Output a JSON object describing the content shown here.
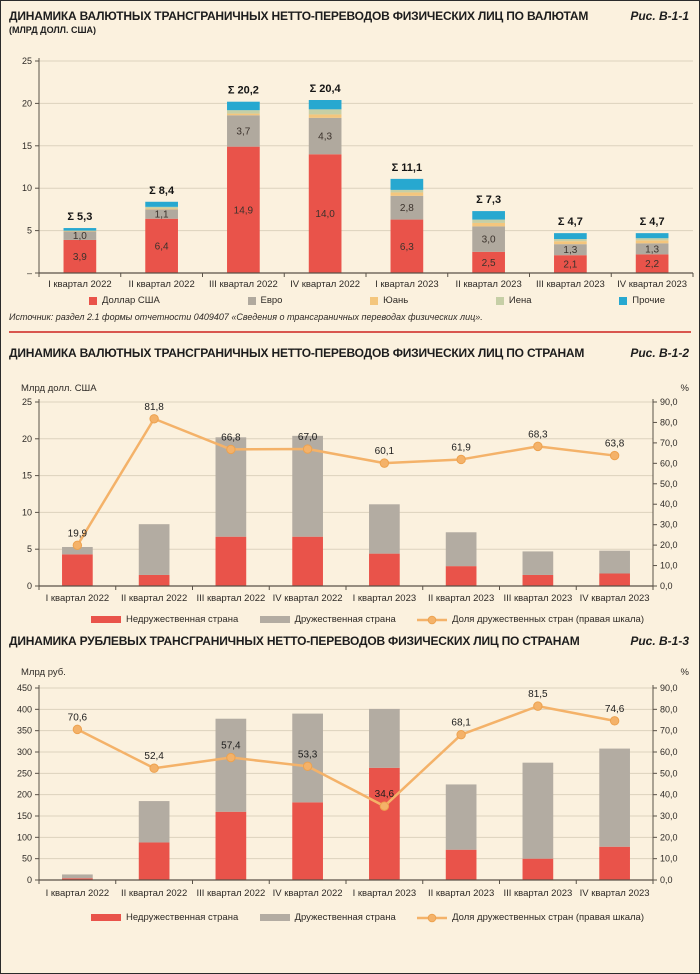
{
  "page": {
    "background": "#fbf1de",
    "divider_color": "#d9564e"
  },
  "chart_data": [
    {
      "type": "stacked_bar",
      "title": "ДИНАМИКА ВАЛЮТНЫХ ТРАНСГРАНИЧНЫХ НЕТТО-ПЕРЕВОДОВ ФИЗИЧЕСКИХ ЛИЦ ПО ВАЛЮТАМ",
      "subtitle": "(МЛРД ДОЛЛ. США)",
      "fig": "Рис. В-1-1",
      "categories": [
        "I квартал 2022",
        "II квартал 2022",
        "III квартал 2022",
        "IV квартал 2022",
        "I квартал 2023",
        "II квартал 2023",
        "III квартал 2023",
        "IV квартал 2023"
      ],
      "left_axis": {
        "min": 0,
        "max": 25,
        "tick_values": [
          0,
          5,
          10,
          15,
          20,
          25
        ],
        "tick_labels": [
          "–",
          "5",
          "10",
          "15",
          "20",
          "25"
        ]
      },
      "series": [
        {
          "name": "Доллар США",
          "color": "#e9534a",
          "values": [
            3.9,
            6.4,
            14.9,
            14.0,
            6.3,
            2.5,
            2.1,
            2.2
          ],
          "labels": [
            "3,9",
            "6,4",
            "14,9",
            "14,0",
            "6,3",
            "2,5",
            "2,1",
            "2,2"
          ]
        },
        {
          "name": "Евро",
          "color": "#b0a99e",
          "values": [
            1.0,
            1.1,
            3.7,
            4.3,
            2.8,
            3.0,
            1.3,
            1.3
          ],
          "labels": [
            "1,0",
            "1,1",
            "3,7",
            "4,3",
            "2,8",
            "3,0",
            "1,3",
            "1,3"
          ]
        },
        {
          "name": "Юань",
          "color": "#f4c67d",
          "values": [
            0.05,
            0.1,
            0.2,
            0.4,
            0.4,
            0.4,
            0.35,
            0.35
          ]
        },
        {
          "name": "Иена",
          "color": "#c6cfa6",
          "values": [
            0.05,
            0.2,
            0.4,
            0.6,
            0.3,
            0.4,
            0.25,
            0.25
          ]
        },
        {
          "name": "Прочие",
          "color": "#27a8d0",
          "values": [
            0.3,
            0.6,
            1.0,
            1.1,
            1.3,
            1.0,
            0.7,
            0.6
          ]
        }
      ],
      "sum_labels": [
        "Σ 5,3",
        "Σ 8,4",
        "Σ 20,2",
        "Σ 20,4",
        "Σ 11,1",
        "Σ 7,3",
        "Σ 4,7",
        "Σ 4,7"
      ],
      "source": "Источник: раздел 2.1 формы отчетности 0409407 «Сведения о трансграничных переводах физических лиц»."
    },
    {
      "type": "stacked_bar_line",
      "title": "ДИНАМИКА ВАЛЮТНЫХ ТРАНСГРАНИЧНЫХ НЕТТО-ПЕРЕВОДОВ ФИЗИЧЕСКИХ ЛИЦ ПО СТРАНАМ",
      "fig": "Рис. В-1-2",
      "left_axis_label": "Млрд долл. США",
      "right_axis_label": "%",
      "categories": [
        "I квартал 2022",
        "II квартал 2022",
        "III квартал 2022",
        "IV квартал 2022",
        "I квартал 2023",
        "II квартал 2023",
        "III квартал 2023",
        "IV квартал 2023"
      ],
      "left_axis": {
        "min": 0,
        "max": 25,
        "tick_values": [
          0,
          5,
          10,
          15,
          20,
          25
        ],
        "tick_labels": [
          "0",
          "5",
          "10",
          "15",
          "20",
          "25"
        ]
      },
      "right_axis": {
        "min": 0,
        "max": 90,
        "tick_values": [
          0,
          10,
          20,
          30,
          40,
          50,
          60,
          70,
          80,
          90
        ],
        "tick_labels": [
          "0,0",
          "10,0",
          "20,0",
          "30,0",
          "40,0",
          "50,0",
          "60,0",
          "70,0",
          "80,0",
          "90,0"
        ]
      },
      "series": [
        {
          "name": "Недружественная страна",
          "color": "#e9534a",
          "values": [
            4.3,
            1.5,
            6.7,
            6.7,
            4.4,
            2.7,
            1.5,
            1.7
          ]
        },
        {
          "name": "Дружественная страна",
          "color": "#b3aca2",
          "values": [
            1.0,
            6.9,
            13.5,
            13.7,
            6.7,
            4.6,
            3.2,
            3.1
          ]
        }
      ],
      "line": {
        "name": "Доля дружественных стран (правая шкала)",
        "color": "#f4b269",
        "values": [
          19.9,
          81.8,
          66.8,
          67.0,
          60.1,
          61.9,
          68.3,
          63.8
        ],
        "labels": [
          "19,9",
          "81,8",
          "66,8",
          "67,0",
          "60,1",
          "61,9",
          "68,3",
          "63,8"
        ]
      }
    },
    {
      "type": "stacked_bar_line",
      "title": "ДИНАМИКА РУБЛЕВЫХ ТРАНСГРАНИЧНЫХ НЕТТО-ПЕРЕВОДОВ ФИЗИЧЕСКИХ ЛИЦ ПО СТРАНАМ",
      "fig": "Рис. В-1-3",
      "left_axis_label": "Млрд руб.",
      "right_axis_label": "%",
      "categories": [
        "I квартал 2022",
        "II квартал 2022",
        "III квартал 2022",
        "IV квартал 2022",
        "I квартал 2023",
        "II квартал 2023",
        "III квартал 2023",
        "IV квартал 2023"
      ],
      "left_axis": {
        "min": 0,
        "max": 450,
        "tick_values": [
          0,
          50,
          100,
          150,
          200,
          250,
          300,
          350,
          400,
          450
        ],
        "tick_labels": [
          "0",
          "50",
          "100",
          "150",
          "200",
          "250",
          "300",
          "350",
          "400",
          "450"
        ]
      },
      "right_axis": {
        "min": 0,
        "max": 90,
        "tick_values": [
          0,
          10,
          20,
          30,
          40,
          50,
          60,
          70,
          80,
          90
        ],
        "tick_labels": [
          "0,0",
          "10,0",
          "20,0",
          "30,0",
          "40,0",
          "50,0",
          "60,0",
          "70,0",
          "80,0",
          "90,0"
        ]
      },
      "series": [
        {
          "name": "Недружественная страна",
          "color": "#e9534a",
          "values": [
            4,
            88,
            160,
            182,
            263,
            71,
            50,
            78
          ]
        },
        {
          "name": "Дружественная страна",
          "color": "#b3aca2",
          "values": [
            9,
            97,
            218,
            208,
            138,
            153,
            225,
            230
          ]
        }
      ],
      "line": {
        "name": "Доля дружественных стран (правая шкала)",
        "color": "#f4b269",
        "values": [
          70.6,
          52.4,
          57.4,
          53.3,
          34.6,
          68.1,
          81.5,
          74.6
        ],
        "labels": [
          "70,6",
          "52,4",
          "57,4",
          "53,3",
          "34,6",
          "68,1",
          "81,5",
          "74,6"
        ]
      }
    }
  ]
}
